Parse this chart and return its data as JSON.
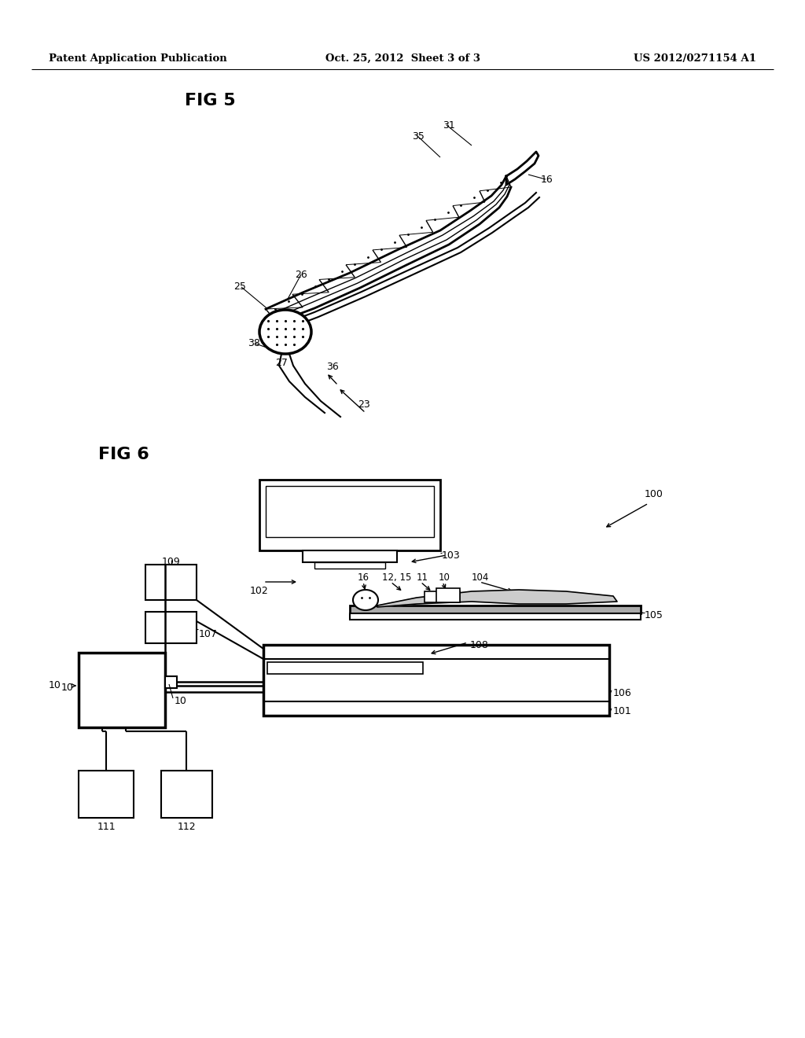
{
  "bg_color": "#ffffff",
  "header_left": "Patent Application Publication",
  "header_center": "Oct. 25, 2012  Sheet 3 of 3",
  "header_right": "US 2012/0271154 A1",
  "fig5_label": "FIG 5",
  "fig6_label": "FIG 6"
}
